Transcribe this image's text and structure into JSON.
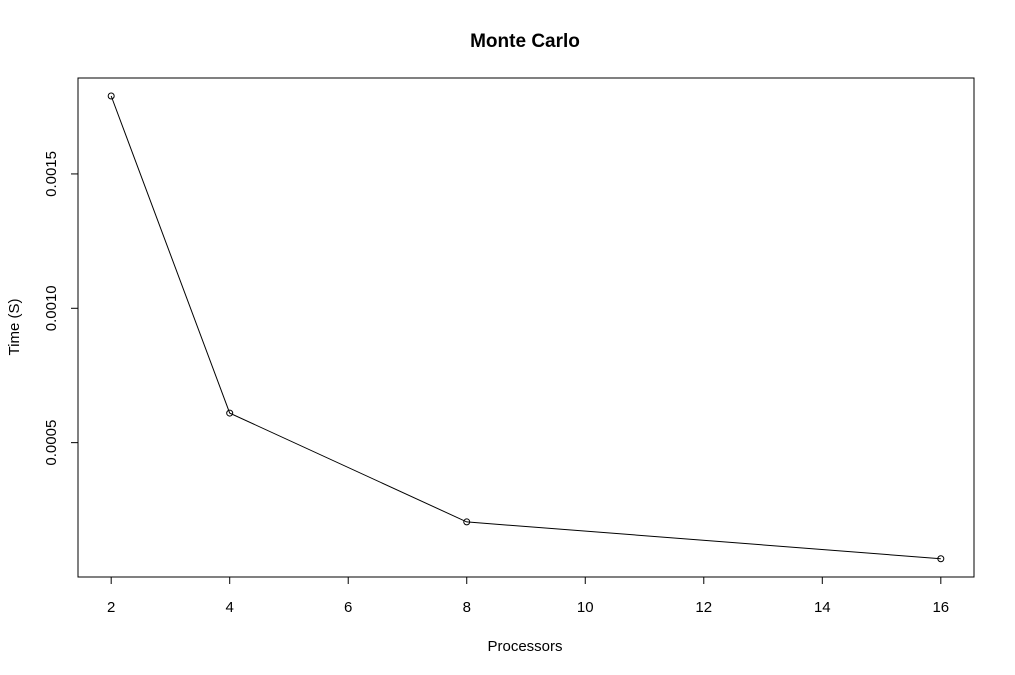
{
  "chart_data": {
    "type": "line",
    "title": "Monte Carlo",
    "xlabel": "Processors",
    "ylabel": "Time (S)",
    "x": [
      2,
      4,
      8,
      16
    ],
    "series": [
      {
        "values": [
          0.00179,
          0.00061,
          0.000205,
          6.8e-05
        ]
      }
    ],
    "xlim": [
      1.44,
      16.56
    ],
    "ylim": [
      0.0,
      0.001857
    ],
    "x_ticks": [
      2,
      4,
      6,
      8,
      10,
      12,
      14,
      16
    ],
    "x_tick_labels": [
      "2",
      "4",
      "6",
      "8",
      "10",
      "12",
      "14",
      "16"
    ],
    "y_ticks": [
      0.0005,
      0.001,
      0.0015
    ],
    "y_tick_labels": [
      "0.0005",
      "0.0010",
      "0.0015"
    ],
    "grid": false,
    "line_color": "#000000",
    "marker": "open-circle"
  }
}
